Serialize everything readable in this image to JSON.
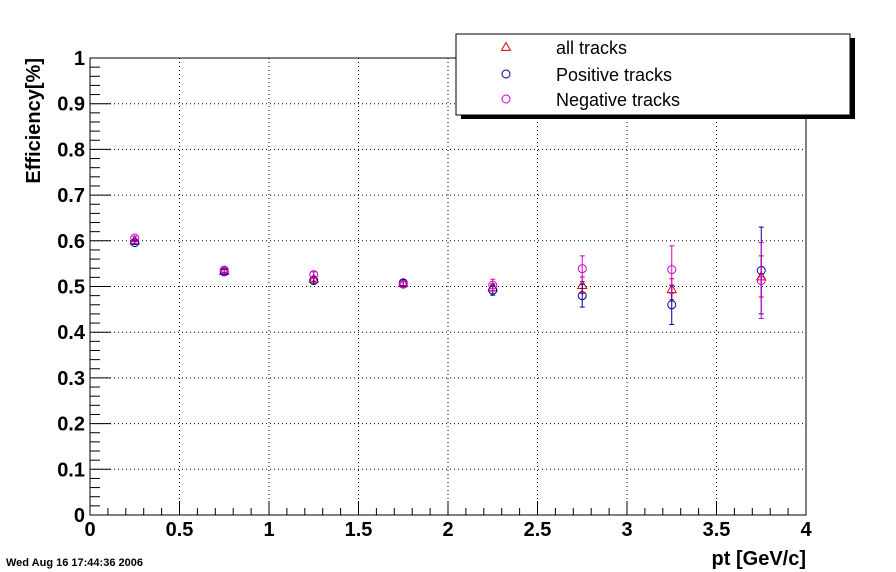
{
  "timestamp": "Wed Aug 16 17:44:36 2006",
  "chart_data": {
    "type": "scatter",
    "title": "",
    "xlabel": "pt [GeV/c]",
    "ylabel": "Efficiency[%]",
    "xlim": [
      0,
      4
    ],
    "ylim": [
      0,
      1
    ],
    "grid": true,
    "legend_position": "top-right",
    "x_ticks": [
      "0",
      "0.5",
      "1",
      "1.5",
      "2",
      "2.5",
      "3",
      "3.5",
      "4"
    ],
    "y_ticks": [
      "0",
      "0.1",
      "0.2",
      "0.3",
      "0.4",
      "0.5",
      "0.6",
      "0.7",
      "0.8",
      "0.9",
      "1"
    ],
    "x": [
      0.25,
      0.75,
      1.25,
      1.75,
      2.25,
      2.75,
      3.25,
      3.75
    ],
    "series": [
      {
        "name": "all tracks",
        "marker": "triangle",
        "color": "#dd0000",
        "values": [
          0.601,
          0.534,
          0.517,
          0.507,
          0.498,
          0.503,
          0.494,
          0.522
        ],
        "errors": [
          0.003,
          0.004,
          0.005,
          0.005,
          0.008,
          0.018,
          0.023,
          0.045
        ]
      },
      {
        "name": "Positive tracks",
        "marker": "circle",
        "color": "#000099",
        "values": [
          0.596,
          0.532,
          0.513,
          0.508,
          0.492,
          0.48,
          0.46,
          0.535
        ],
        "errors": [
          0.004,
          0.006,
          0.007,
          0.007,
          0.011,
          0.025,
          0.043,
          0.095
        ]
      },
      {
        "name": "Negative tracks",
        "marker": "circle",
        "color": "#cc00cc",
        "values": [
          0.606,
          0.536,
          0.526,
          0.505,
          0.503,
          0.539,
          0.537,
          0.513
        ],
        "errors": [
          0.004,
          0.005,
          0.006,
          0.007,
          0.013,
          0.028,
          0.052,
          0.083
        ]
      }
    ]
  }
}
